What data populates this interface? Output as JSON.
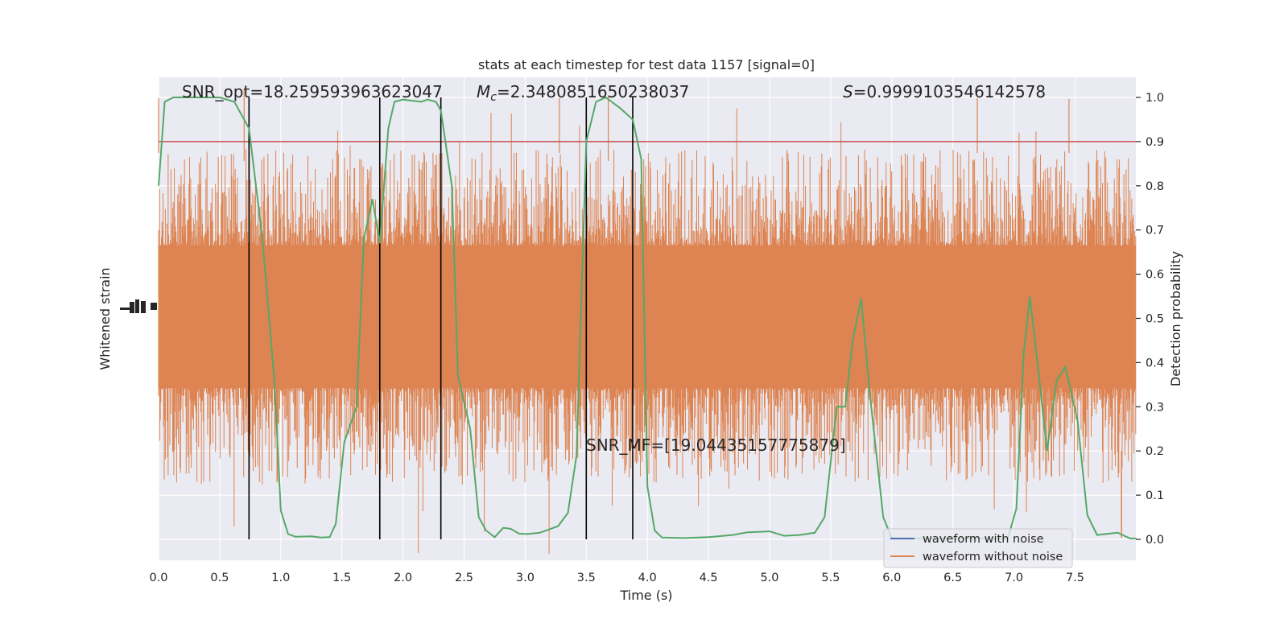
{
  "chart_data": {
    "type": "line",
    "title": "stats at each timestep for test data 1157 [signal=0]",
    "xlabel": "Time (s)",
    "ylabel_left": "Whitened strain",
    "ylabel_right": "Detection probability",
    "xlim": [
      0,
      8
    ],
    "ylim_right": [
      -0.05,
      1.05
    ],
    "x_ticks": [
      0.0,
      0.5,
      1.0,
      1.5,
      2.0,
      2.5,
      3.0,
      3.5,
      4.0,
      4.5,
      5.0,
      5.5,
      6.0,
      6.5,
      7.0,
      7.5
    ],
    "y_ticks_right": [
      0.0,
      0.1,
      0.2,
      0.3,
      0.4,
      0.5,
      0.6,
      0.7,
      0.8,
      0.9,
      1.0
    ],
    "grid": true,
    "legend_position": "lower-right",
    "threshold": 0.9,
    "vlines": [
      0.74,
      1.81,
      2.31,
      3.5,
      3.88
    ],
    "annotations": {
      "snr_opt": "SNR_opt=18.259593963623047",
      "mc_symbol": "M",
      "mc_sub": "c",
      "mc_value": "=2.3480851650238037",
      "s_symbol": "S",
      "s_value": "=0.9999103546142578",
      "snr_mf": "SNR_MF=[19.04435157775879]"
    },
    "series": [
      {
        "name": "waveform with noise",
        "color": "#4c72b0"
      },
      {
        "name": "waveform without noise",
        "color": "#dd8452"
      },
      {
        "color": "#55a868",
        "points": [
          [
            0.0,
            0.8
          ],
          [
            0.05,
            0.99
          ],
          [
            0.12,
            1.0
          ],
          [
            0.3,
            1.0
          ],
          [
            0.5,
            1.0
          ],
          [
            0.62,
            0.99
          ],
          [
            0.74,
            0.93
          ],
          [
            0.85,
            0.68
          ],
          [
            0.95,
            0.35
          ],
          [
            1.0,
            0.065
          ],
          [
            1.06,
            0.012
          ],
          [
            1.12,
            0.006
          ],
          [
            1.25,
            0.007
          ],
          [
            1.33,
            0.004
          ],
          [
            1.4,
            0.005
          ],
          [
            1.45,
            0.035
          ],
          [
            1.52,
            0.22
          ],
          [
            1.62,
            0.3
          ],
          [
            1.68,
            0.68
          ],
          [
            1.75,
            0.77
          ],
          [
            1.81,
            0.67
          ],
          [
            1.88,
            0.93
          ],
          [
            1.93,
            0.99
          ],
          [
            2.0,
            0.995
          ],
          [
            2.15,
            0.99
          ],
          [
            2.2,
            0.995
          ],
          [
            2.27,
            0.99
          ],
          [
            2.31,
            0.97
          ],
          [
            2.4,
            0.8
          ],
          [
            2.45,
            0.37
          ],
          [
            2.55,
            0.25
          ],
          [
            2.62,
            0.05
          ],
          [
            2.68,
            0.02
          ],
          [
            2.75,
            0.005
          ],
          [
            2.82,
            0.026
          ],
          [
            2.88,
            0.024
          ],
          [
            2.95,
            0.013
          ],
          [
            3.02,
            0.012
          ],
          [
            3.12,
            0.015
          ],
          [
            3.22,
            0.025
          ],
          [
            3.27,
            0.03
          ],
          [
            3.35,
            0.06
          ],
          [
            3.42,
            0.19
          ],
          [
            3.5,
            0.9
          ],
          [
            3.58,
            0.99
          ],
          [
            3.66,
            1.0
          ],
          [
            3.78,
            0.975
          ],
          [
            3.88,
            0.95
          ],
          [
            3.95,
            0.86
          ],
          [
            4.0,
            0.12
          ],
          [
            4.06,
            0.02
          ],
          [
            4.12,
            0.004
          ],
          [
            4.3,
            0.003
          ],
          [
            4.5,
            0.005
          ],
          [
            4.7,
            0.01
          ],
          [
            4.82,
            0.016
          ],
          [
            5.0,
            0.018
          ],
          [
            5.12,
            0.008
          ],
          [
            5.25,
            0.01
          ],
          [
            5.37,
            0.015
          ],
          [
            5.45,
            0.05
          ],
          [
            5.55,
            0.3
          ],
          [
            5.62,
            0.3
          ],
          [
            5.68,
            0.45
          ],
          [
            5.75,
            0.545
          ],
          [
            5.82,
            0.33
          ],
          [
            5.93,
            0.05
          ],
          [
            6.0,
            0.003
          ],
          [
            6.2,
            0.002
          ],
          [
            6.6,
            0.002
          ],
          [
            6.95,
            0.002
          ],
          [
            7.02,
            0.07
          ],
          [
            7.08,
            0.42
          ],
          [
            7.13,
            0.55
          ],
          [
            7.2,
            0.38
          ],
          [
            7.27,
            0.2
          ],
          [
            7.35,
            0.36
          ],
          [
            7.42,
            0.39
          ],
          [
            7.52,
            0.27
          ],
          [
            7.6,
            0.055
          ],
          [
            7.68,
            0.01
          ],
          [
            7.85,
            0.015
          ],
          [
            7.95,
            0.002
          ],
          [
            8.0,
            0.002
          ]
        ]
      }
    ]
  }
}
